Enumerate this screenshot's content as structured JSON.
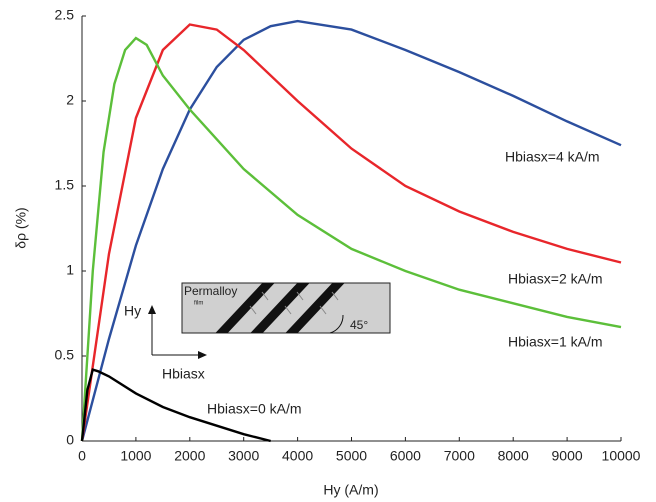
{
  "chart_data": {
    "type": "line",
    "xlabel": "Hy (A/m)",
    "ylabel": "δρ (%)",
    "xlim": [
      0,
      10000
    ],
    "ylim": [
      0,
      2.5
    ],
    "xticks": [
      0,
      1000,
      2000,
      3000,
      4000,
      5000,
      6000,
      7000,
      8000,
      9000,
      10000
    ],
    "yticks": [
      0,
      0.5,
      1,
      1.5,
      2,
      2.5
    ],
    "grid": false,
    "series": [
      {
        "name": "Hbiasx=4 kA/m",
        "color": "#2c4f9e",
        "x": [
          0,
          500,
          1000,
          1500,
          2000,
          2500,
          3000,
          3500,
          4000,
          5000,
          6000,
          7000,
          8000,
          9000,
          10000
        ],
        "values": [
          0,
          0.6,
          1.15,
          1.6,
          1.95,
          2.2,
          2.36,
          2.44,
          2.47,
          2.42,
          2.3,
          2.17,
          2.03,
          1.88,
          1.74
        ]
      },
      {
        "name": "Hbiasx=2 kA/m",
        "color": "#e8262b",
        "x": [
          0,
          500,
          1000,
          1500,
          2000,
          2500,
          3000,
          4000,
          5000,
          6000,
          7000,
          8000,
          9000,
          10000
        ],
        "values": [
          0,
          1.1,
          1.9,
          2.3,
          2.45,
          2.42,
          2.3,
          2.0,
          1.72,
          1.5,
          1.35,
          1.23,
          1.13,
          1.05
        ]
      },
      {
        "name": "Hbiasx=1 kA/m",
        "color": "#5cbf3a",
        "x": [
          0,
          200,
          400,
          600,
          800,
          1000,
          1200,
          1500,
          2000,
          3000,
          4000,
          5000,
          6000,
          7000,
          8000,
          9000,
          10000
        ],
        "values": [
          0,
          1.0,
          1.7,
          2.1,
          2.3,
          2.37,
          2.33,
          2.15,
          1.95,
          1.6,
          1.33,
          1.13,
          1.0,
          0.89,
          0.81,
          0.73,
          0.67
        ]
      },
      {
        "name": "Hbiasx=0 kA/m",
        "color": "#000000",
        "x": [
          0,
          100,
          200,
          300,
          500,
          1000,
          1500,
          2000,
          2500,
          3000,
          3500
        ],
        "values": [
          0,
          0.3,
          0.42,
          0.41,
          0.38,
          0.28,
          0.2,
          0.14,
          0.09,
          0.04,
          0
        ]
      }
    ],
    "annotations": [
      "Permalloy",
      "film",
      "45°",
      "Hy",
      "Hbiasx"
    ]
  }
}
